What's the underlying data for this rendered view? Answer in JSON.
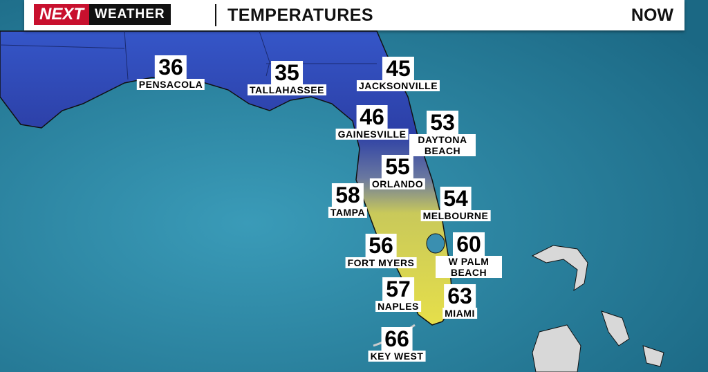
{
  "header": {
    "logo_next": "NEXT",
    "logo_weather": "WEATHER",
    "title": "TEMPERATURES",
    "time": "NOW"
  },
  "cities": [
    {
      "name": "PENSACOLA",
      "temp": 36
    },
    {
      "name": "TALLAHASSEE",
      "temp": 35
    },
    {
      "name": "JACKSONVILLE",
      "temp": 45
    },
    {
      "name": "GAINESVILLE",
      "temp": 46
    },
    {
      "name": "DAYTONA BEACH",
      "temp": 53
    },
    {
      "name": "ORLANDO",
      "temp": 55
    },
    {
      "name": "TAMPA",
      "temp": 58
    },
    {
      "name": "MELBOURNE",
      "temp": 54
    },
    {
      "name": "FORT MYERS",
      "temp": 56
    },
    {
      "name": "W PALM BEACH",
      "temp": 60
    },
    {
      "name": "NAPLES",
      "temp": 57
    },
    {
      "name": "MIAMI",
      "temp": 63
    },
    {
      "name": "KEY WEST",
      "temp": 66
    }
  ]
}
